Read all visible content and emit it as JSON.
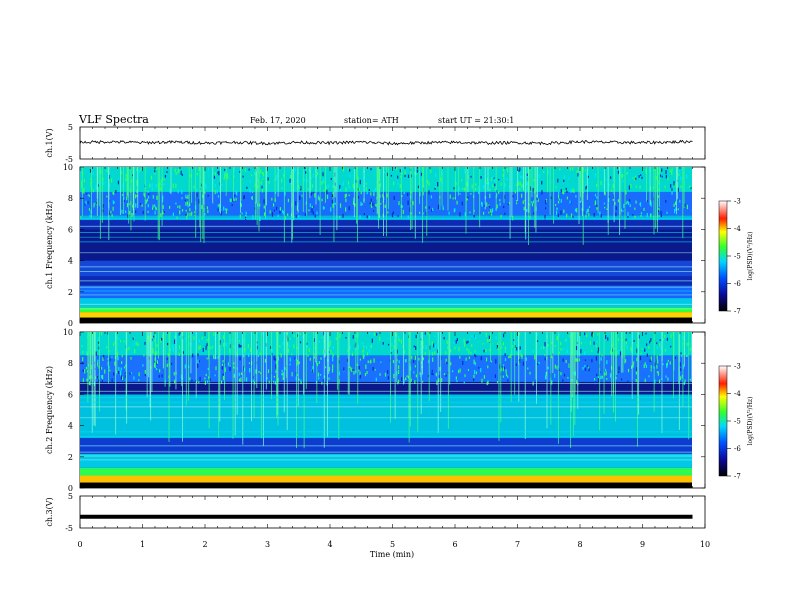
{
  "header": {
    "title": "VLF Spectra",
    "date": "Feb. 17, 2020",
    "station": "station= ATH",
    "start": "start UT = 21:30:1"
  },
  "chart_data": [
    {
      "type": "line",
      "panel": "ch1-waveform",
      "ylabel": "ch.1(V)",
      "ylim": [
        -5,
        5
      ],
      "yticks": [
        "5",
        "-5"
      ],
      "series": [
        {
          "x": [
            0,
            0.5,
            1,
            1.5,
            2,
            2.5,
            3,
            3.5,
            4,
            4.5,
            5,
            5.5,
            6,
            6.5,
            7,
            7.5,
            8,
            8.5,
            9,
            9.5,
            9.8
          ],
          "values": [
            0.2,
            0.4,
            0.1,
            0.3,
            0.0,
            0.2,
            -0.1,
            0.2,
            0.0,
            0.3,
            -0.2,
            0.1,
            0.2,
            0.0,
            0.1,
            -0.1,
            0.4,
            0.2,
            0.1,
            0.3,
            0.5
          ]
        }
      ]
    },
    {
      "type": "heatmap",
      "panel": "ch1-spectrogram",
      "ylabel": "ch.1 Frequency (kHz)",
      "ylim": [
        0,
        10
      ],
      "yticks": [
        "0",
        "2",
        "4",
        "6",
        "8",
        "10"
      ],
      "colorbar": {
        "label": "log(PSD)(V²/Hz)",
        "range": [
          -7,
          -3
        ],
        "ticks": [
          "-3",
          "-4",
          "-5",
          "-6",
          "-7"
        ]
      }
    },
    {
      "type": "heatmap",
      "panel": "ch2-spectrogram",
      "ylabel": "ch.2 Frequency (kHz)",
      "ylim": [
        0,
        10
      ],
      "yticks": [
        "0",
        "2",
        "4",
        "6",
        "8",
        "10"
      ],
      "colorbar": {
        "label": "log(PSD)(V²/Hz)",
        "range": [
          -7,
          -3
        ],
        "ticks": [
          "-3",
          "-4",
          "-5",
          "-6",
          "-7"
        ]
      }
    },
    {
      "type": "line",
      "panel": "ch3-waveform",
      "ylabel": "ch.3(V)",
      "ylim": [
        -5,
        5
      ],
      "yticks": [
        "5",
        "-5"
      ],
      "xlabel": "Time (min)",
      "xlim": [
        0,
        10
      ],
      "xticks": [
        "0",
        "1",
        "2",
        "3",
        "4",
        "5",
        "6",
        "7",
        "8",
        "9",
        "10"
      ],
      "series": [
        {
          "x": [
            0,
            9.8
          ],
          "values": [
            -1.5,
            -1.5
          ]
        }
      ]
    }
  ],
  "colors": {
    "background": "#ffffff",
    "axes": "#000000",
    "spectrogram_low": "#0a1a8c",
    "spectrogram_mid": "#00c8e6",
    "spectrogram_high": "#3cff3c"
  }
}
